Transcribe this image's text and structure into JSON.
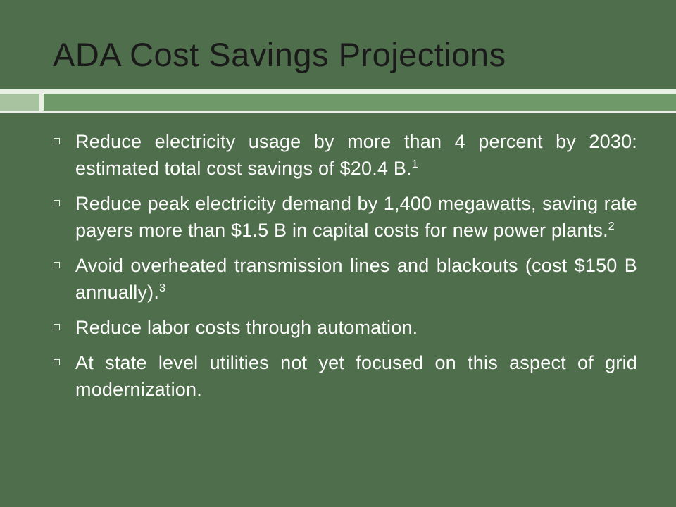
{
  "slide": {
    "title": "ADA Cost Savings Projections",
    "bullets": [
      {
        "text": "Reduce electricity usage by more than 4 percent by 2030: estimated total cost savings of $20.4 B.",
        "note": "1"
      },
      {
        "text": "Reduce peak electricity demand by 1,400 megawatts, saving rate payers more than $1.5 B in capital costs for new power plants.",
        "note": "2"
      },
      {
        "text": "Avoid overheated transmission lines and blackouts (cost $150 B annually).",
        "note": "3"
      },
      {
        "text": "Reduce labor costs through automation.",
        "note": ""
      },
      {
        "text": "At state level utilities not yet focused on this aspect of grid modernization.",
        "note": ""
      }
    ]
  },
  "colors": {
    "background": "#4f6e4b",
    "title": "#1a1a1a",
    "body_text": "#ffffff",
    "rule_light": "#e9efe4",
    "rule_accent_left": "#a8c3a0",
    "rule_accent_right": "#6f9969"
  },
  "icons": {
    "bullet": "hollow-square-bullet-icon"
  }
}
